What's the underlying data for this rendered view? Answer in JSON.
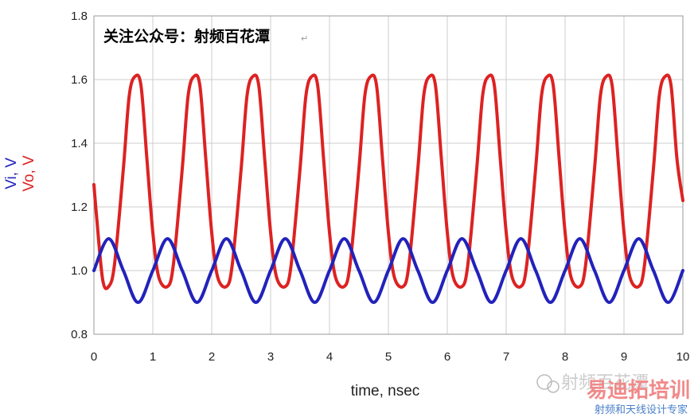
{
  "chart_data": {
    "type": "line",
    "xlabel": "time, nsec",
    "ylabels": [
      {
        "text": "Vi, V",
        "color": "#2222bb"
      },
      {
        "text": "Vo, V",
        "color": "#dd2222"
      }
    ],
    "xlim": [
      0,
      10
    ],
    "ylim": [
      0.8,
      1.8
    ],
    "x_ticks": [
      "0",
      "1",
      "2",
      "3",
      "4",
      "5",
      "6",
      "7",
      "8",
      "9",
      "10"
    ],
    "y_ticks": [
      "0.8",
      "1.0",
      "1.2",
      "1.4",
      "1.6",
      "1.8"
    ],
    "grid": true,
    "annotation": "关注公众号：射频百花潭",
    "series": [
      {
        "name": "Vi",
        "color": "#2222bb",
        "model": "1.0 + 0.1*sin(2*pi*t)",
        "x": [
          0,
          0.25,
          0.5,
          0.75,
          1,
          1.25,
          1.5,
          1.75,
          2,
          2.25,
          2.5,
          2.75,
          3,
          3.25,
          3.5,
          3.75,
          4,
          4.25,
          4.5,
          4.75,
          5,
          5.25,
          5.5,
          5.75,
          6,
          6.25,
          6.5,
          6.75,
          7,
          7.25,
          7.5,
          7.75,
          8,
          8.25,
          8.5,
          8.75,
          9,
          9.25,
          9.5,
          9.75,
          10
        ],
        "values": [
          1.0,
          1.1,
          1.0,
          0.9,
          1.0,
          1.1,
          1.0,
          0.9,
          1.0,
          1.1,
          1.0,
          0.9,
          1.0,
          1.1,
          1.0,
          0.9,
          1.0,
          1.1,
          1.0,
          0.9,
          1.0,
          1.1,
          1.0,
          0.9,
          1.0,
          1.1,
          1.0,
          0.9,
          1.0,
          1.1,
          1.0,
          0.9,
          1.0,
          1.1,
          1.0,
          0.9,
          1.0,
          1.1,
          1.0,
          0.9,
          1.0
        ]
      },
      {
        "name": "Vo",
        "color": "#dd2222",
        "x": [
          0,
          0.05,
          0.15,
          0.25,
          0.35,
          0.5,
          0.6,
          0.7,
          0.8,
          0.9,
          1.0,
          1.1,
          1.25,
          1.35,
          1.5,
          1.6,
          1.7,
          1.8,
          1.9,
          2.0,
          2.1,
          2.25,
          2.35,
          2.5,
          2.6,
          2.7,
          2.8,
          2.9,
          3.0,
          3.1,
          3.25,
          3.35,
          3.5,
          3.6,
          3.7,
          3.8,
          3.9,
          4.0,
          4.1,
          4.25,
          4.35,
          4.5,
          4.6,
          4.7,
          4.8,
          4.9,
          5.0,
          5.1,
          5.25,
          5.35,
          5.5,
          5.6,
          5.7,
          5.8,
          5.9,
          6.0,
          6.1,
          6.25,
          6.35,
          6.5,
          6.6,
          6.7,
          6.8,
          6.9,
          7.0,
          7.1,
          7.25,
          7.35,
          7.5,
          7.6,
          7.7,
          7.8,
          7.9,
          8.0,
          8.1,
          8.25,
          8.35,
          8.5,
          8.6,
          8.7,
          8.8,
          8.9,
          9.0,
          9.1,
          9.25,
          9.35,
          9.5,
          9.6,
          9.7,
          9.8,
          9.9,
          10.0
        ],
        "values": [
          1.27,
          1.16,
          0.97,
          0.95,
          1.02,
          1.32,
          1.55,
          1.61,
          1.58,
          1.35,
          1.12,
          0.98,
          0.95,
          1.02,
          1.32,
          1.55,
          1.61,
          1.58,
          1.35,
          1.12,
          0.98,
          0.95,
          1.02,
          1.32,
          1.55,
          1.61,
          1.58,
          1.35,
          1.12,
          0.98,
          0.95,
          1.02,
          1.32,
          1.55,
          1.61,
          1.58,
          1.35,
          1.12,
          0.98,
          0.95,
          1.02,
          1.32,
          1.55,
          1.61,
          1.58,
          1.35,
          1.12,
          0.98,
          0.95,
          1.02,
          1.32,
          1.55,
          1.61,
          1.58,
          1.35,
          1.12,
          0.98,
          0.95,
          1.02,
          1.32,
          1.55,
          1.61,
          1.58,
          1.35,
          1.12,
          0.98,
          0.95,
          1.02,
          1.32,
          1.55,
          1.61,
          1.58,
          1.35,
          1.12,
          0.98,
          0.95,
          1.02,
          1.32,
          1.55,
          1.61,
          1.58,
          1.35,
          1.12,
          0.98,
          0.95,
          1.02,
          1.32,
          1.55,
          1.61,
          1.58,
          1.35,
          1.22
        ]
      }
    ]
  },
  "watermark": {
    "wechat_icon": "wechat-icon",
    "faded_text": "射频百花潭",
    "brand_text": "易迪拓培训",
    "subtitle": "射频和天线设计专家"
  }
}
